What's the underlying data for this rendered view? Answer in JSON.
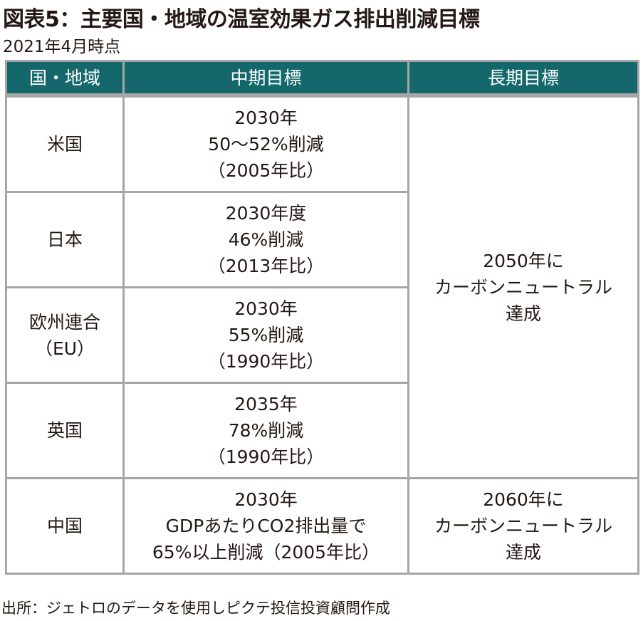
{
  "title": "図表5：主要国・地域の温室効果ガス排出削減目標",
  "subtitle": "2021年4月時点",
  "table": {
    "headers": [
      "国・地域",
      "中期目標",
      "長期目標"
    ],
    "rows": [
      {
        "country": [
          "米国"
        ],
        "mid": [
          "2030年",
          "50～52%削減",
          "（2005年比）"
        ]
      },
      {
        "country": [
          "日本"
        ],
        "mid": [
          "2030年度",
          "46%削減",
          "（2013年比）"
        ]
      },
      {
        "country": [
          "欧州連合",
          "（EU）"
        ],
        "mid": [
          "2030年",
          "55%削減",
          "（1990年比）"
        ]
      },
      {
        "country": [
          "英国"
        ],
        "mid": [
          "2035年",
          "78%削減",
          "（1990年比）"
        ]
      },
      {
        "country": [
          "中国"
        ],
        "mid": [
          "2030年",
          "GDPあたりCO2排出量で",
          "65%以上削減（2005年比）"
        ]
      }
    ],
    "long_term_shared": [
      "2050年に",
      "カーボンニュートラル",
      "達成"
    ],
    "long_term_china": [
      "2060年に",
      "カーボンニュートラル",
      "達成"
    ]
  },
  "footer": "出所：ジェトロのデータを使用しピクテ投信投資顧問作成",
  "colors": {
    "header_bg": "#14686c",
    "border": "#a6a6a6"
  }
}
